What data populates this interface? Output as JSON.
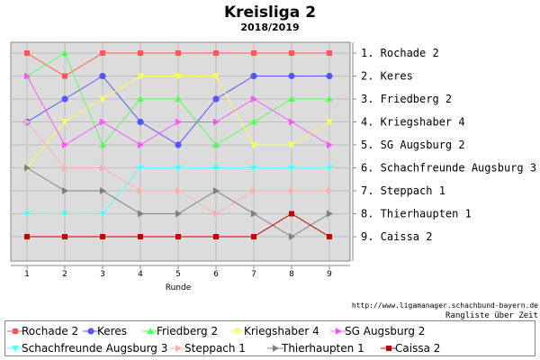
{
  "chart_data": {
    "type": "line",
    "title": "Kreisliga 2",
    "subtitle": "2018/2019",
    "xlabel": "Runde",
    "ylabel": "",
    "x": [
      1,
      2,
      3,
      4,
      5,
      6,
      7,
      8,
      9
    ],
    "y_categories": [
      "1. Rochade 2",
      "2. Keres",
      "3. Friedberg 2",
      "4. Kriegshaber 4",
      "5. SG Augsburg 2",
      "6. Schachfreunde Augsburg 3",
      "7. Steppach 1",
      "8. Thierhaupten 1",
      "9. Caissa 2"
    ],
    "ylim": [
      9,
      1
    ],
    "grid": true,
    "legend": "bottom",
    "footer": [
      "http://www.ligamanager.schachbund-bayern.de",
      "Rangliste über Zeit"
    ],
    "series": [
      {
        "name": "Rochade 2",
        "color": "#ff5555",
        "marker": "square",
        "values": [
          1,
          2,
          1,
          1,
          1,
          1,
          1,
          1,
          1
        ]
      },
      {
        "name": "Keres",
        "color": "#5555ff",
        "marker": "circle",
        "values": [
          4,
          3,
          2,
          4,
          5,
          3,
          2,
          2,
          2
        ]
      },
      {
        "name": "Friedberg 2",
        "color": "#55ff55",
        "marker": "triangle-up",
        "values": [
          2,
          1,
          5,
          3,
          3,
          5,
          4,
          3,
          3
        ]
      },
      {
        "name": "Kriegshaber 4",
        "color": "#ffff55",
        "marker": "triangle-down",
        "values": [
          6,
          4,
          3,
          2,
          2,
          2,
          5,
          5,
          4
        ]
      },
      {
        "name": "SG Augsburg 2",
        "color": "#ff55ff",
        "marker": "triangle-right",
        "values": [
          2,
          5,
          4,
          5,
          4,
          4,
          3,
          4,
          5
        ]
      },
      {
        "name": "Schachfreunde Augsburg 3",
        "color": "#55ffff",
        "marker": "triangle-down",
        "values": [
          8,
          8,
          8,
          6,
          6,
          6,
          6,
          6,
          6
        ]
      },
      {
        "name": "Steppach 1",
        "color": "#ffafaf",
        "marker": "triangle-right",
        "values": [
          4,
          6,
          6,
          7,
          7,
          8,
          7,
          7,
          7
        ]
      },
      {
        "name": "Thierhaupten 1",
        "color": "#808080",
        "marker": "triangle-right",
        "values": [
          6,
          7,
          7,
          8,
          8,
          7,
          8,
          9,
          8
        ]
      },
      {
        "name": "Caissa 2",
        "color": "#c00000",
        "marker": "square",
        "values": [
          9,
          9,
          9,
          9,
          9,
          9,
          9,
          8,
          9
        ]
      }
    ]
  }
}
